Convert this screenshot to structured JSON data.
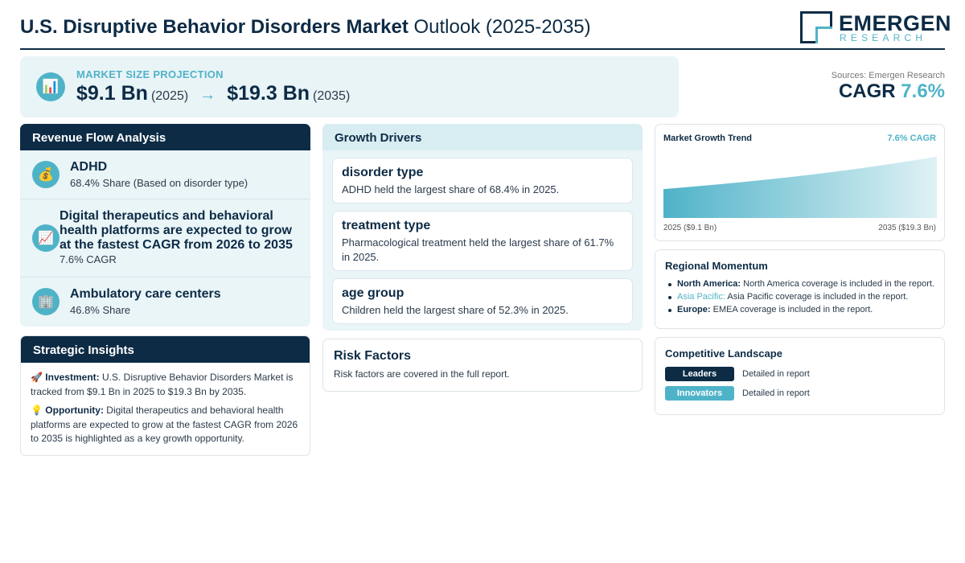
{
  "header": {
    "title_bold": "U.S. Disruptive Behavior Disorders Market",
    "title_rest": "Outlook (2025-2035)",
    "logo_main": "EMERGEN",
    "logo_sub": "RESEARCH"
  },
  "projection": {
    "label": "MARKET SIZE PROJECTION",
    "start_value": "$9.1 Bn",
    "start_year": "(2025)",
    "arrow": "→",
    "end_value": "$19.3 Bn",
    "end_year": "(2035)",
    "icon": "bar-chart-icon"
  },
  "sources": {
    "text": "Sources: Emergen Research",
    "cagr_label": "CAGR",
    "cagr_value": "7.6%"
  },
  "revenue_flow": {
    "title": "Revenue Flow Analysis",
    "items": [
      {
        "icon": "money-bag-icon",
        "glyph": "💰",
        "title": "ADHD",
        "sub": "68.4% Share (Based on disorder type)"
      },
      {
        "icon": "trend-up-icon",
        "glyph": "📈",
        "title": "Digital therapeutics and behavioral health platforms are expected to grow at the fastest CAGR from 2026 to 2035",
        "sub": "7.6% CAGR"
      },
      {
        "icon": "building-icon",
        "glyph": "🏢",
        "title": "Ambulatory care centers",
        "sub": "46.8% Share"
      }
    ]
  },
  "strategic_insights": {
    "title": "Strategic Insights",
    "investment_icon": "🚀",
    "investment_label": "Investment:",
    "investment_text": "U.S. Disruptive Behavior Disorders Market is tracked from $9.1 Bn in 2025 to $19.3 Bn by 2035.",
    "opportunity_icon": "💡",
    "opportunity_label": "Opportunity:",
    "opportunity_text": "Digital therapeutics and behavioral health platforms are expected to grow at the fastest CAGR from 2026 to 2035 is highlighted as a key growth opportunity."
  },
  "growth_drivers": {
    "title": "Growth Drivers",
    "cards": [
      {
        "title": "disorder type",
        "text": "ADHD held the largest share of 68.4% in 2025."
      },
      {
        "title": "treatment type",
        "text": "Pharmacological treatment held the largest share of 61.7% in 2025."
      },
      {
        "title": "age group",
        "text": "Children held the largest share of 52.3% in 2025."
      }
    ]
  },
  "risk_factors": {
    "title": "Risk Factors",
    "text": "Risk factors are covered in the full report."
  },
  "market_trend": {
    "title": "Market Growth Trend",
    "cagr": "7.6% CAGR",
    "start_label": "2025 ($9.1 Bn)",
    "end_label": "2035 ($19.3 Bn)",
    "accent_color": "#4fb3c8"
  },
  "chart_data": {
    "type": "area",
    "x": [
      2025,
      2035
    ],
    "values": [
      9.1,
      19.3
    ],
    "title": "Market Growth Trend",
    "xlabel": "",
    "ylabel": ""
  },
  "regional_momentum": {
    "title": "Regional Momentum",
    "items": [
      {
        "name": "North America:",
        "text": "North America coverage is included in the report."
      },
      {
        "name": "Asia Pacific:",
        "text": "Asia Pacific coverage is included in the report."
      },
      {
        "name": "Europe:",
        "text": "EMEA coverage is included in the report."
      }
    ]
  },
  "competitive_landscape": {
    "title": "Competitive Landscape",
    "rows": [
      {
        "badge": "Leaders",
        "text": "Detailed in report"
      },
      {
        "badge": "Innovators",
        "text": "Detailed in report"
      }
    ]
  },
  "colors": {
    "navy": "#0d2b45",
    "accent": "#4fb3c8",
    "panel_bg": "#eaf5f8"
  }
}
